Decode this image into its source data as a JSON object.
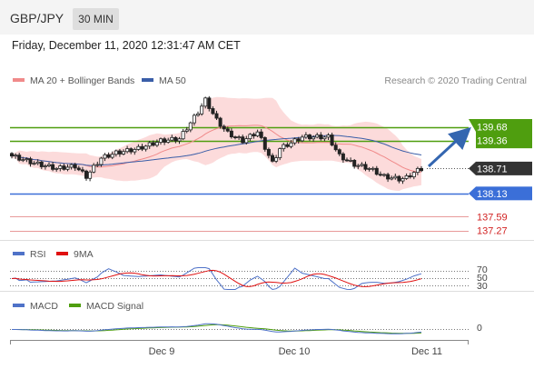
{
  "header": {
    "pair": "GBP/JPY",
    "timeframe": "30 MIN"
  },
  "date": "Friday, December 11, 2020 12:31:47 AM CET",
  "chart_data": {
    "type": "candlestick",
    "legend": [
      {
        "name": "MA 20 + Bollinger Bands",
        "color": "#f08a8a"
      },
      {
        "name": "MA 50",
        "color": "#3a5ea8"
      }
    ],
    "copyright": "Research © 2020 Trading Central",
    "levels": [
      {
        "value": 139.68,
        "label": "139.68",
        "color": "#4f9e0f",
        "kind": "resistance"
      },
      {
        "value": 139.36,
        "label": "139.36",
        "color": "#4f9e0f",
        "kind": "resistance"
      },
      {
        "value": 138.71,
        "label": "138.71",
        "color": "#333333",
        "kind": "last"
      },
      {
        "value": 138.13,
        "label": "138.13",
        "color": "#3b6fd8",
        "kind": "pivot"
      },
      {
        "value": 137.59,
        "label": "137.59",
        "color": "#d22222",
        "kind": "support"
      },
      {
        "value": 137.27,
        "label": "137.27",
        "color": "#d22222",
        "kind": "support"
      }
    ],
    "x_labels": [
      "Dec 9",
      "Dec 10",
      "Dec 11"
    ],
    "anchors": [
      [
        0,
        139.0
      ],
      [
        6,
        138.83
      ],
      [
        12,
        138.71
      ],
      [
        17,
        138.76
      ],
      [
        20,
        138.52
      ],
      [
        24,
        138.95
      ],
      [
        28,
        139.07
      ],
      [
        34,
        139.17
      ],
      [
        40,
        139.35
      ],
      [
        45,
        139.4
      ],
      [
        50,
        140.02
      ],
      [
        52,
        140.3
      ],
      [
        55,
        139.83
      ],
      [
        58,
        139.53
      ],
      [
        62,
        139.35
      ],
      [
        66,
        139.56
      ],
      [
        70,
        138.83
      ],
      [
        72,
        139.17
      ],
      [
        78,
        139.44
      ],
      [
        85,
        139.44
      ],
      [
        88,
        139.0
      ],
      [
        92,
        138.8
      ],
      [
        96,
        138.71
      ],
      [
        100,
        138.52
      ],
      [
        104,
        138.46
      ],
      [
        106,
        138.49
      ],
      [
        108,
        138.62
      ],
      [
        110,
        138.7
      ]
    ],
    "rsi": {
      "name": "RSI",
      "ma_name": "9MA",
      "ticks": [
        "70",
        "50",
        "30"
      ],
      "rsi_color": "#4f72c8",
      "ma_color": "#e01010"
    },
    "macd": {
      "name": "MACD",
      "signal_name": "MACD Signal",
      "ticks": [
        "0"
      ],
      "macd_color": "#4f72c8",
      "signal_color": "#4f9e0f"
    }
  }
}
